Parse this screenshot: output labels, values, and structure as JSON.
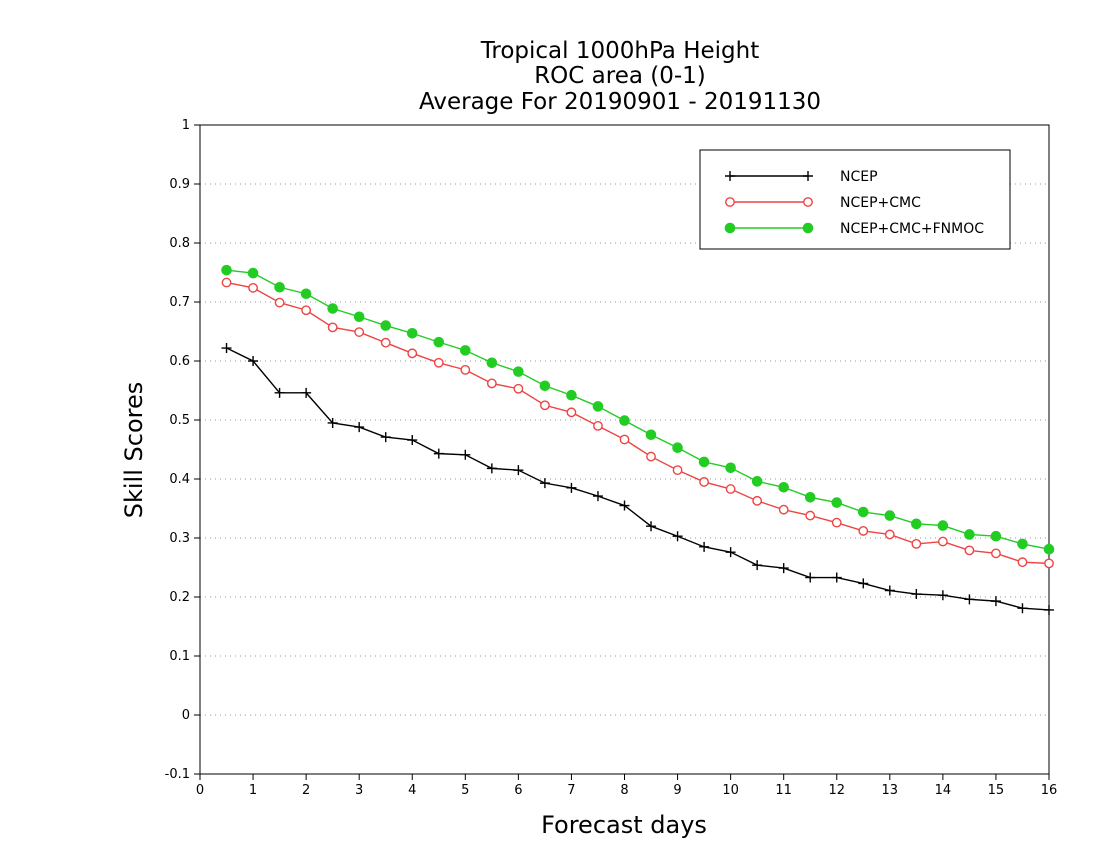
{
  "chart_data": {
    "type": "line",
    "title_lines": [
      "Tropical 1000hPa Height",
      "ROC area (0-1)",
      "Average For 20190901 - 20191130"
    ],
    "xlabel": "Forecast days",
    "ylabel": "Skill Scores",
    "xlim": [
      0,
      16
    ],
    "ylim": [
      -0.1,
      1
    ],
    "x_ticks": [
      0,
      1,
      2,
      3,
      4,
      5,
      6,
      7,
      8,
      9,
      10,
      11,
      12,
      13,
      14,
      15,
      16
    ],
    "y_ticks": [
      -0.1,
      0,
      0.1,
      0.2,
      0.3,
      0.4,
      0.5,
      0.6,
      0.7,
      0.8,
      0.9,
      1
    ],
    "y_tick_labels": [
      "-0.1",
      "0",
      "0.1",
      "0.2",
      "0.3",
      "0.4",
      "0.5",
      "0.6",
      "0.7",
      "0.8",
      "0.9",
      "1"
    ],
    "grid": "horizontal-dotted",
    "legend_position": "top-right",
    "x": [
      0.5,
      1,
      1.5,
      2,
      2.5,
      3,
      3.5,
      4,
      4.5,
      5,
      5.5,
      6,
      6.5,
      7,
      7.5,
      8,
      8.5,
      9,
      9.5,
      10,
      10.5,
      11,
      11.5,
      12,
      12.5,
      13,
      13.5,
      14,
      14.5,
      15,
      15.5,
      16
    ],
    "series": [
      {
        "name": "NCEP",
        "color": "#000000",
        "marker": "plus",
        "values": [
          0.622,
          0.6,
          0.546,
          0.546,
          0.495,
          0.488,
          0.471,
          0.466,
          0.443,
          0.441,
          0.418,
          0.415,
          0.393,
          0.385,
          0.371,
          0.355,
          0.32,
          0.303,
          0.285,
          0.276,
          0.254,
          0.249,
          0.233,
          0.233,
          0.223,
          0.211,
          0.205,
          0.203,
          0.196,
          0.193,
          0.181,
          0.178
        ]
      },
      {
        "name": "NCEP+CMC",
        "color": "#ee4444",
        "marker": "open-circle",
        "values": [
          0.733,
          0.724,
          0.699,
          0.686,
          0.657,
          0.649,
          0.631,
          0.613,
          0.597,
          0.585,
          0.562,
          0.553,
          0.525,
          0.513,
          0.49,
          0.467,
          0.438,
          0.415,
          0.395,
          0.383,
          0.363,
          0.348,
          0.338,
          0.326,
          0.312,
          0.306,
          0.29,
          0.294,
          0.279,
          0.274,
          0.259,
          0.257
        ]
      },
      {
        "name": "NCEP+CMC+FNMOC",
        "color": "#22cc22",
        "marker": "filled-circle",
        "values": [
          0.754,
          0.749,
          0.725,
          0.714,
          0.689,
          0.675,
          0.66,
          0.647,
          0.632,
          0.618,
          0.597,
          0.582,
          0.558,
          0.542,
          0.523,
          0.499,
          0.475,
          0.453,
          0.429,
          0.419,
          0.396,
          0.386,
          0.369,
          0.36,
          0.344,
          0.338,
          0.324,
          0.321,
          0.306,
          0.303,
          0.29,
          0.281
        ]
      }
    ]
  }
}
